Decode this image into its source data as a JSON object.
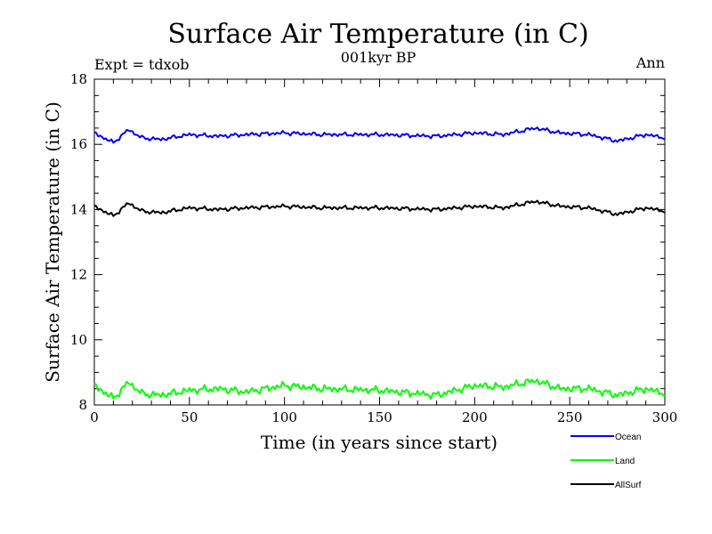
{
  "chart_data": {
    "type": "line",
    "title": "Surface Air Temperature (in C)",
    "subtitle": "001kyr BP",
    "top_left_label": "Expt = tdxob",
    "top_right_label": "Ann",
    "xlabel": "Time (in years since start)",
    "ylabel": "Surface Air Temperature (in C)",
    "xlim": [
      0,
      300
    ],
    "ylim": [
      8,
      18
    ],
    "x_ticks": [
      "0",
      "50",
      "100",
      "150",
      "200",
      "250",
      "300"
    ],
    "y_ticks": [
      "8",
      "10",
      "12",
      "14",
      "16",
      "18"
    ],
    "grid": false,
    "legend_position": "bottom-right",
    "series": [
      {
        "name": "Ocean",
        "color": "#0000ff",
        "x": [
          0,
          10,
          18,
          25,
          35,
          50,
          65,
          80,
          100,
          120,
          150,
          180,
          200,
          215,
          232,
          245,
          260,
          275,
          290,
          300
        ],
        "values": [
          16.35,
          16.05,
          16.45,
          16.2,
          16.15,
          16.3,
          16.25,
          16.3,
          16.35,
          16.3,
          16.3,
          16.25,
          16.35,
          16.3,
          16.5,
          16.35,
          16.3,
          16.1,
          16.3,
          16.2
        ]
      },
      {
        "name": "Land",
        "color": "#00ff00",
        "x": [
          0,
          10,
          18,
          25,
          35,
          50,
          65,
          80,
          100,
          120,
          150,
          180,
          200,
          215,
          232,
          245,
          260,
          275,
          290,
          300
        ],
        "values": [
          8.6,
          8.2,
          8.7,
          8.35,
          8.3,
          8.45,
          8.5,
          8.4,
          8.6,
          8.5,
          8.45,
          8.3,
          8.6,
          8.55,
          8.75,
          8.5,
          8.5,
          8.3,
          8.5,
          8.35
        ]
      },
      {
        "name": "AllSurf",
        "color": "#000000",
        "x": [
          0,
          10,
          18,
          25,
          35,
          50,
          65,
          80,
          100,
          120,
          150,
          180,
          200,
          215,
          232,
          245,
          260,
          275,
          290,
          300
        ],
        "values": [
          14.1,
          13.8,
          14.2,
          13.95,
          13.9,
          14.05,
          14.0,
          14.05,
          14.1,
          14.05,
          14.05,
          14.0,
          14.1,
          14.05,
          14.25,
          14.1,
          14.05,
          13.85,
          14.05,
          13.95
        ]
      }
    ]
  }
}
